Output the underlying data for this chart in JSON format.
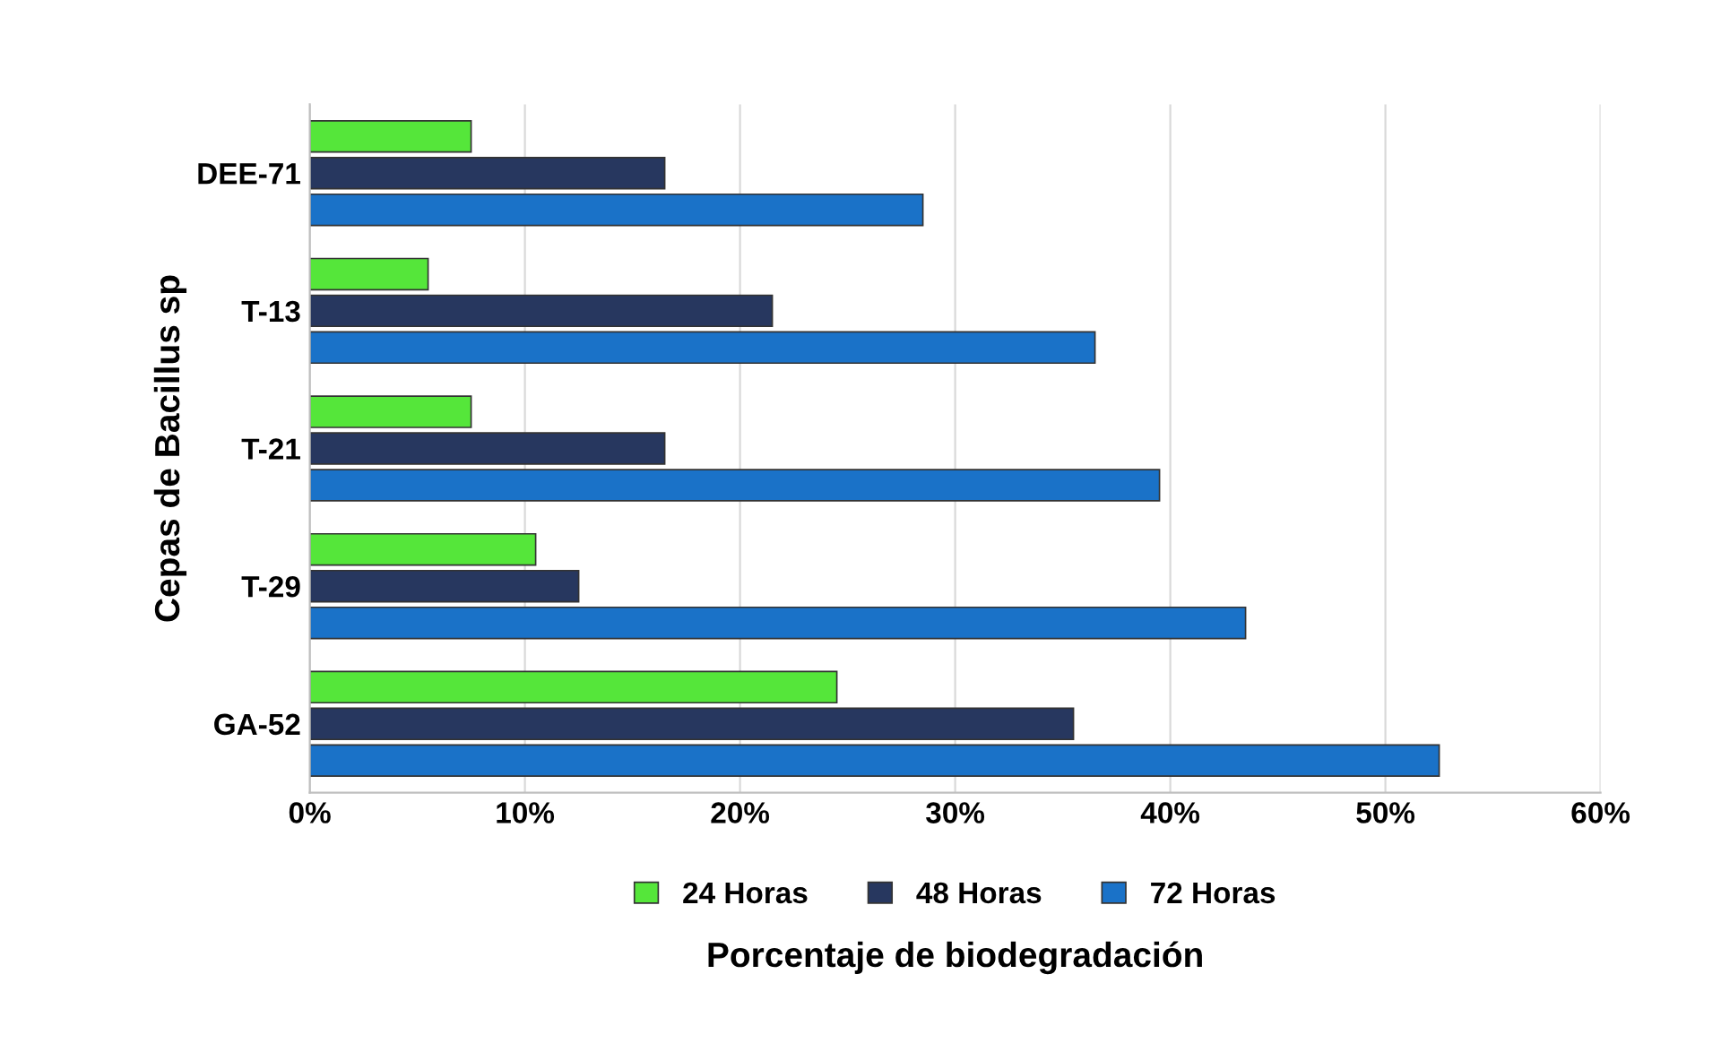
{
  "chart_data": {
    "type": "bar",
    "orientation": "horizontal",
    "xlabel": "Porcentaje de biodegradación",
    "ylabel": "Cepas de Bacillus sp",
    "categories": [
      "DEE-71",
      "T-13",
      "T-21",
      "T-29",
      "GA-52"
    ],
    "series": [
      {
        "name": "24 Horas",
        "color": "#55e63a",
        "values": [
          7.5,
          5.5,
          7.5,
          10.5,
          24.5
        ]
      },
      {
        "name": "48 Horas",
        "color": "#27375f",
        "values": [
          16.5,
          21.5,
          16.5,
          12.5,
          35.5
        ]
      },
      {
        "name": "72 Horas",
        "color": "#1a72c8",
        "values": [
          28.5,
          36.5,
          39.5,
          43.5,
          52.5
        ]
      }
    ],
    "xlim": [
      0,
      60
    ],
    "xticks": [
      {
        "value": 0,
        "label": "0%"
      },
      {
        "value": 10,
        "label": "10%"
      },
      {
        "value": 20,
        "label": "20%"
      },
      {
        "value": 30,
        "label": "30%"
      },
      {
        "value": 40,
        "label": "40%"
      },
      {
        "value": 50,
        "label": "50%"
      },
      {
        "value": 60,
        "label": "60%"
      }
    ],
    "grid": "x",
    "legend": "bottom"
  }
}
